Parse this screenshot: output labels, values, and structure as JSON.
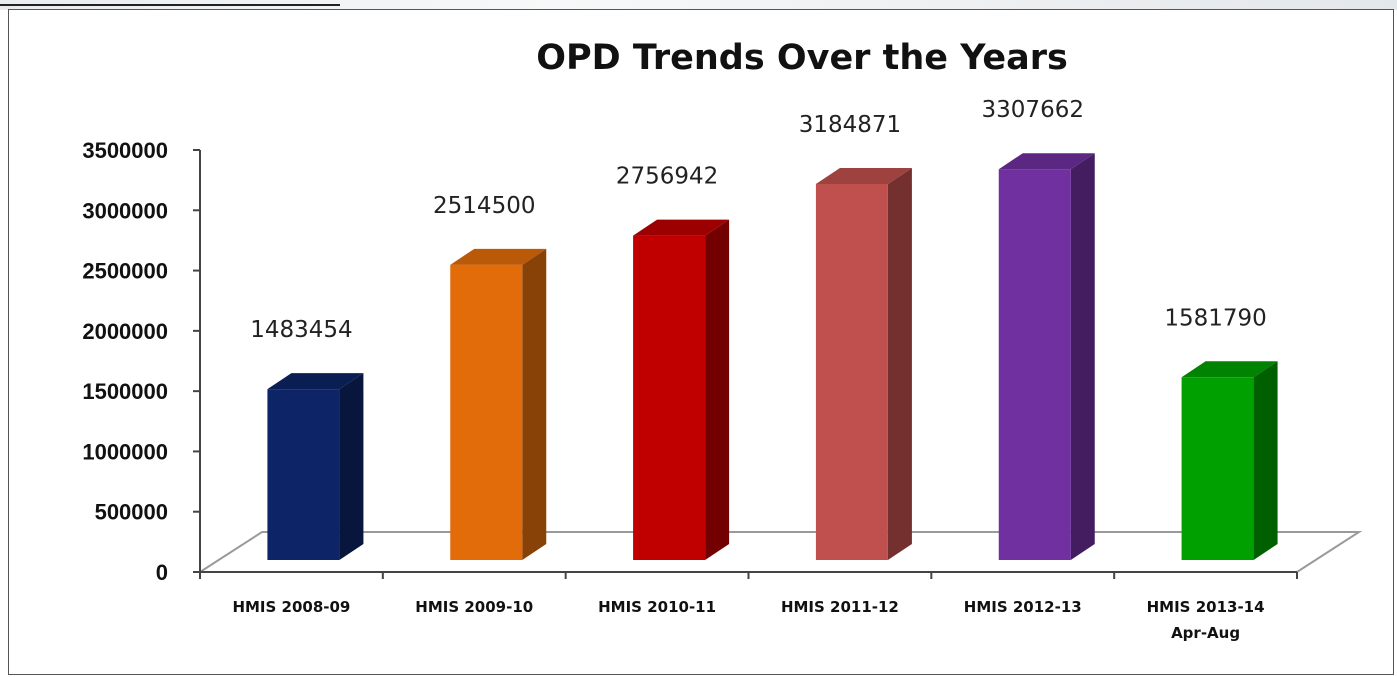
{
  "chart_data": {
    "type": "bar",
    "style": "3d-column",
    "title": "OPD Trends Over the Years",
    "xlabel": "",
    "ylabel": "",
    "categories": [
      [
        "HMIS 2008-09"
      ],
      [
        "HMIS 2009-10"
      ],
      [
        "HMIS 2010-11"
      ],
      [
        "HMIS 2011-12"
      ],
      [
        "HMIS 2012-13"
      ],
      [
        "HMIS 2013-14",
        "Apr-Aug"
      ]
    ],
    "values": [
      1483454,
      2514500,
      2756942,
      3184871,
      3307662,
      1581790
    ],
    "data_labels": [
      "1483454",
      "2514500",
      "2756942",
      "3184871",
      "3307662",
      "1581790"
    ],
    "colors": [
      "#0d2566",
      "#e36c0a",
      "#c00000",
      "#c0504d",
      "#7030a0",
      "#00a000"
    ],
    "ylim": [
      0,
      3500000
    ],
    "yticks": [
      0,
      500000,
      1000000,
      1500000,
      2000000,
      2500000,
      3000000,
      3500000
    ],
    "ytick_labels": [
      "0",
      "500000",
      "1000000",
      "1500000",
      "2000000",
      "2500000",
      "3000000",
      "3500000"
    ],
    "grid": false,
    "legend": "none"
  }
}
